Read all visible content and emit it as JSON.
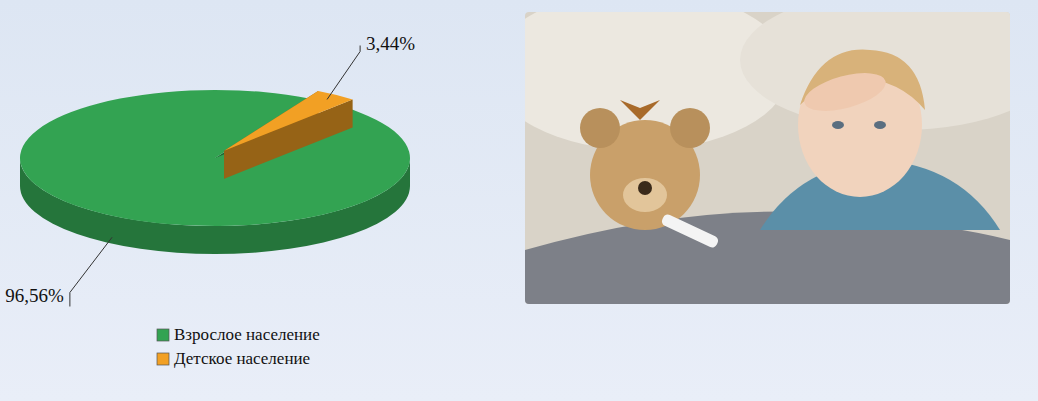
{
  "chart_data": {
    "type": "pie",
    "categories": [
      "Взрослое население",
      "Детское население"
    ],
    "values": [
      96.56,
      3.44
    ],
    "value_labels": [
      "96,56%",
      "3,44%"
    ],
    "colors": [
      "#33a352",
      "#f2a024"
    ],
    "data_labels": true,
    "legend": "bottom"
  }
}
